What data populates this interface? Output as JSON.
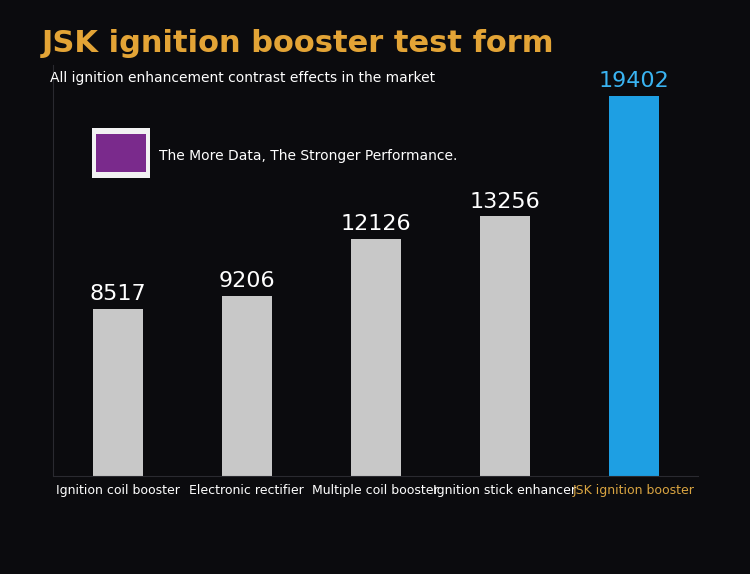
{
  "chart_data": {
    "type": "bar",
    "title": "JSK ignition booster test form",
    "subtitle": "All ignition enhancement contrast effects in the market",
    "annotation": "The More Data, The Stronger Performance.",
    "categories": [
      "Ignition coil booster",
      "Electronic rectifier",
      "Multiple coil booster",
      "Ignition stick enhancer",
      "JSK ignition booster"
    ],
    "values": [
      8517,
      9206,
      12126,
      13256,
      19402
    ],
    "colors": [
      "#c8c8c8",
      "#c8c8c8",
      "#c8c8c8",
      "#c8c8c8",
      "#1e9fe3"
    ],
    "ylim": [
      0,
      21000
    ],
    "yticks": [],
    "data_labels": true,
    "tick_labels": "x",
    "grid": false
  }
}
